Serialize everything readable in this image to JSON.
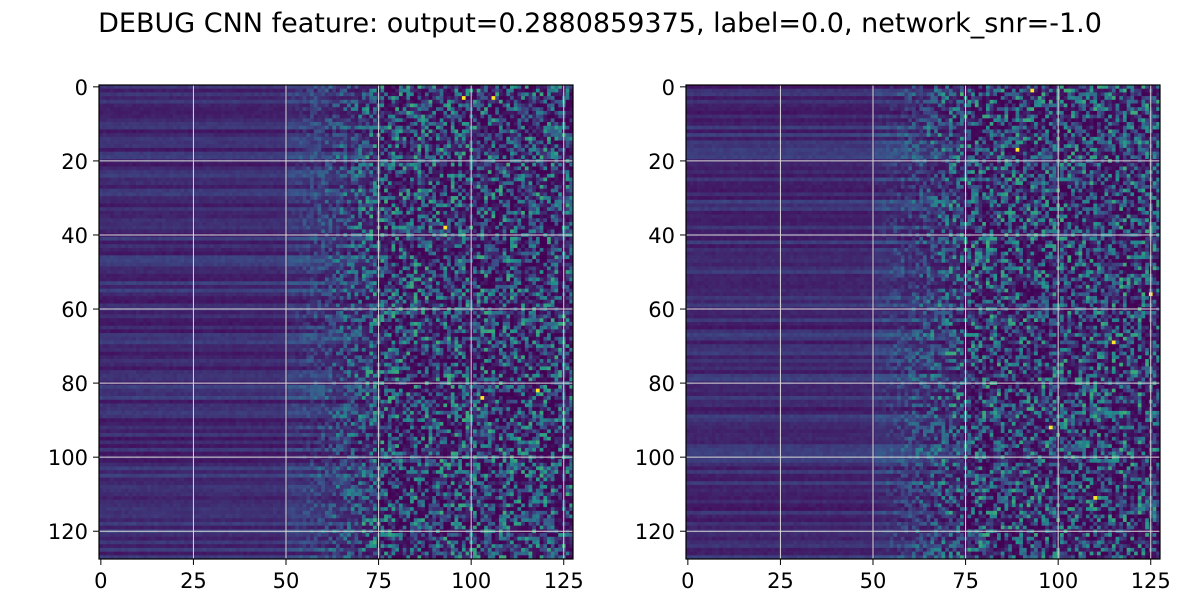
{
  "figure": {
    "title": "DEBUG CNN feature: output=0.2880859375, label=0.0, network_snr=-1.0"
  },
  "colors": {
    "background": "#ffffff",
    "colormap": [
      "#440154",
      "#3b528b",
      "#21918c",
      "#5ec962",
      "#fde725"
    ],
    "grid": "#d9d9d9"
  },
  "chart_data": [
    {
      "type": "heatmap",
      "title": "",
      "xlabel": "",
      "ylabel": "",
      "rows": 128,
      "cols": 128,
      "x_ticks": [
        0,
        25,
        50,
        75,
        100,
        125
      ],
      "y_ticks": [
        0,
        20,
        40,
        60,
        80,
        100,
        120
      ],
      "xlim": [
        -0.5,
        127.5
      ],
      "ylim": [
        127.5,
        -0.5
      ],
      "grid": true,
      "colormap": "viridis",
      "pattern": {
        "low_region_cols": [
          0,
          50
        ],
        "transition_cols": [
          50,
          75
        ],
        "noisy_region_cols": [
          75,
          127
        ],
        "bright_cells": [
          [
            3,
            98
          ],
          [
            3,
            106
          ],
          [
            84,
            103
          ],
          [
            38,
            93
          ],
          [
            82,
            118
          ]
        ]
      }
    },
    {
      "type": "heatmap",
      "title": "",
      "xlabel": "",
      "ylabel": "",
      "rows": 128,
      "cols": 128,
      "x_ticks": [
        0,
        25,
        50,
        75,
        100,
        125
      ],
      "y_ticks": [
        0,
        20,
        40,
        60,
        80,
        100,
        120
      ],
      "xlim": [
        -0.5,
        127.5
      ],
      "ylim": [
        127.5,
        -0.5
      ],
      "grid": true,
      "colormap": "viridis",
      "pattern": {
        "low_region_cols": [
          0,
          50
        ],
        "transition_cols": [
          50,
          75
        ],
        "noisy_region_cols": [
          75,
          127
        ],
        "bright_cells": [
          [
            1,
            93
          ],
          [
            17,
            89
          ],
          [
            56,
            125
          ],
          [
            69,
            115
          ],
          [
            92,
            98
          ],
          [
            111,
            110
          ]
        ]
      }
    }
  ]
}
